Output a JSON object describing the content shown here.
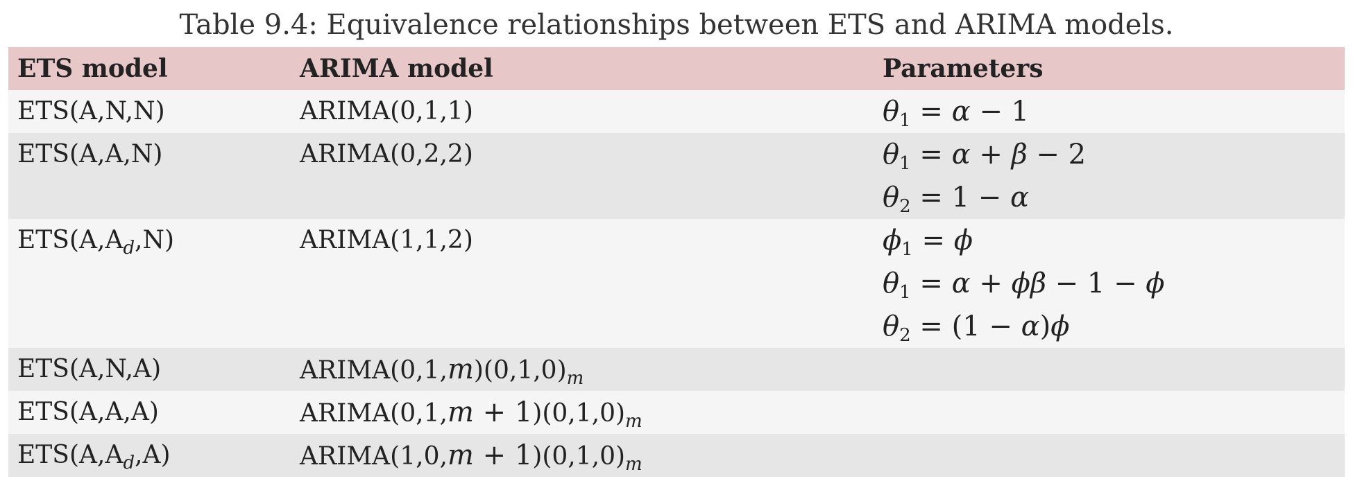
{
  "caption": "Table 9.4: Equivalence relationships between ETS and ARIMA models.",
  "columns": [
    "ETS model",
    "ARIMA model",
    "Parameters"
  ],
  "rows": [
    {
      "ets": "ETS(A,N,N)",
      "arima": "ARIMA(0,1,1)",
      "params": [
        "θ1 = α − 1"
      ]
    },
    {
      "ets": "ETS(A,A,N)",
      "arima": "ARIMA(0,2,2)",
      "params": [
        "θ1 = α + β − 2",
        "θ2 = 1 − α"
      ]
    },
    {
      "ets": "ETS(A,Ad,N)",
      "arima": "ARIMA(1,1,2)",
      "params": [
        "ϕ1 = ϕ",
        "θ1 = α + ϕβ − 1 − ϕ",
        "θ2 = (1 − α)ϕ"
      ]
    },
    {
      "ets": "ETS(A,N,A)",
      "arima": "ARIMA(0,1,m)(0,1,0)m",
      "params": []
    },
    {
      "ets": "ETS(A,A,A)",
      "arima": "ARIMA(0,1,m + 1)(0,1,0)m",
      "params": []
    },
    {
      "ets": "ETS(A,Ad,A)",
      "arima": "ARIMA(1,0,m + 1)(0,1,0)m",
      "params": []
    }
  ]
}
